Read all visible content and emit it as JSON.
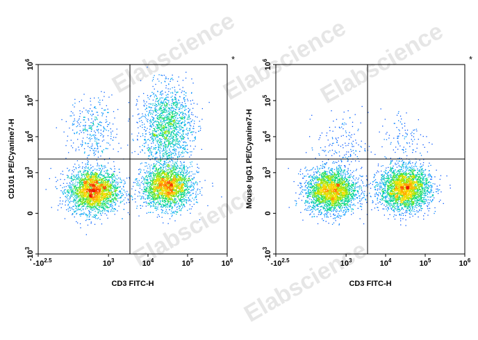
{
  "watermark": "Elabscience",
  "chart_data": [
    {
      "type": "scatter",
      "title": "",
      "xlabel": "CD3 FITC-H",
      "ylabel": "CD101 PE/Cyanine7-H",
      "corner_mark": "*",
      "x_scale": "biexponential",
      "y_scale": "biexponential",
      "x_ticks": [
        "-10^2.5",
        "10^3",
        "10^4",
        "10^5",
        "10^6"
      ],
      "y_ticks": [
        "-10^3",
        "0",
        "10^3",
        "10^4",
        "10^5",
        "10^6"
      ],
      "quadrant_gate": {
        "x": 3500,
        "y": 2400
      },
      "populations": [
        {
          "name": "",
          "x_center": 400,
          "y_center": 300,
          "events": 2600
        },
        {
          "name": "",
          "x_center": 30000,
          "y_center": 400,
          "events": 2300
        },
        {
          "name": "",
          "x_center": 30000,
          "y_center": 20000,
          "events": 1500
        },
        {
          "name": "",
          "x_center": 400,
          "y_center": 15000,
          "events": 320
        }
      ],
      "grid": false
    },
    {
      "type": "scatter",
      "title": "",
      "xlabel": "CD3 FITC-H",
      "ylabel": "Mouse IgG1 PE/Cyanine7-H",
      "corner_mark": "*",
      "x_scale": "biexponential",
      "y_scale": "biexponential",
      "x_ticks": [
        "-10^2.5",
        "10^3",
        "10^4",
        "10^5",
        "10^6"
      ],
      "y_ticks": [
        "-10^3",
        "0",
        "10^3",
        "10^4",
        "10^5",
        "10^6"
      ],
      "quadrant_gate": {
        "x": 3500,
        "y": 2400
      },
      "populations": [
        {
          "name": "",
          "x_center": 400,
          "y_center": 300,
          "events": 2600
        },
        {
          "name": "",
          "x_center": 30000,
          "y_center": 350,
          "events": 2700
        },
        {
          "name": "",
          "x_center": 800,
          "y_center": 6000,
          "events": 160
        },
        {
          "name": "",
          "x_center": 30000,
          "y_center": 8000,
          "events": 120
        }
      ],
      "grid": false
    }
  ]
}
